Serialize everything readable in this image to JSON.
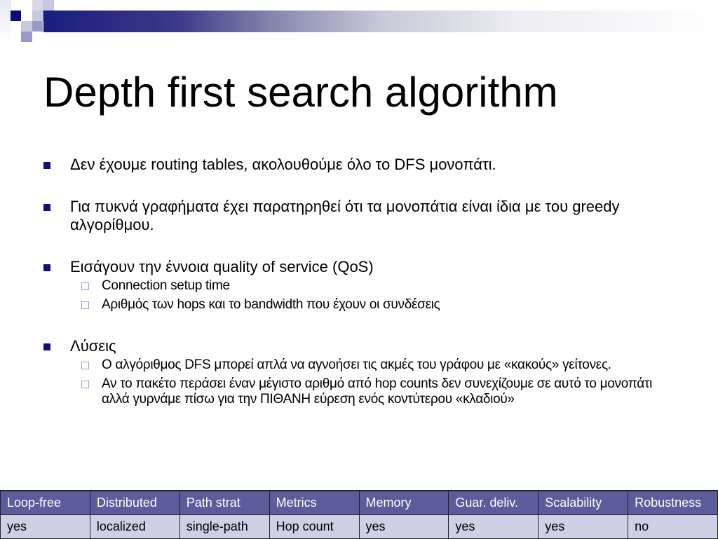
{
  "title": "Depth first search algorithm",
  "colors": {
    "accent": "#10107a",
    "table_header": "#5c5c9c",
    "table_body": "#cfcfe6"
  },
  "bullets": [
    {
      "text": "Δεν έχουμε routing tables, ακολουθούμε όλο το DFS μονοπάτι.",
      "sub": []
    },
    {
      "text": "Για πυκνά γραφήματα έχει παρατηρηθεί ότι τα μονοπάτια είναι ίδια με του greedy αλγορίθμου.",
      "sub": []
    },
    {
      "text": "Εισάγουν την έννοια quality of service (QoS)",
      "sub": [
        "Connection setup time",
        "Αριθμός των hops και το bandwidth που έχουν οι συνδέσεις"
      ]
    },
    {
      "text": "Λύσεις",
      "sub": [
        "Ο αλγόριθμος DFS μπορεί απλά να αγνοήσει τις ακμές του γράφου με «κακούς» γείτονες.",
        "Αν το πακέτο περάσει έναν μέγιστο αριθμό από hop counts δεν συνεχίζουμε σε αυτό το μονοπάτι αλλά γυρνάμε πίσω για την ΠΙΘΑΝΗ εύρεση ενός κοντύτερου «κλαδιού»"
      ]
    }
  ],
  "table": {
    "headers": [
      "Loop-free",
      "Distributed",
      "Path strat",
      "Metrics",
      "Memory",
      "Guar. deliv.",
      "Scalability",
      "Robustness"
    ],
    "row": [
      "yes",
      "localized",
      "single-path",
      "Hop count",
      "yes",
      "yes",
      "yes",
      "no"
    ]
  }
}
